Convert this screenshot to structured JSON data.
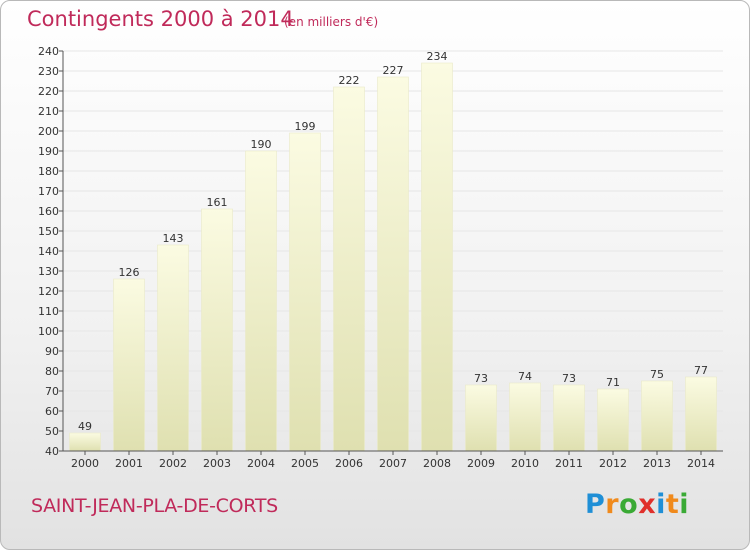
{
  "header": {
    "title": "Contingents 2000 à 2014",
    "subtitle": "(en milliers d'€)"
  },
  "footer": {
    "commune": "SAINT-JEAN-PLA-DE-CORTS",
    "logo_text": "Proxiti"
  },
  "colors": {
    "title": "#c02a5a",
    "bar_top": "#fbfbe2",
    "bar_bottom": "#dfe0b0",
    "grid": "#e6e6e6",
    "axis": "#555555",
    "logo": [
      "#1f8fd6",
      "#f08a1c",
      "#3aaa35",
      "#e0302b",
      "#1f8fd6",
      "#f08a1c",
      "#3aaa35"
    ]
  },
  "chart_data": {
    "type": "bar",
    "categories": [
      "2000",
      "2001",
      "2002",
      "2003",
      "2004",
      "2005",
      "2006",
      "2007",
      "2008",
      "2009",
      "2010",
      "2011",
      "2012",
      "2013",
      "2014"
    ],
    "values": [
      49,
      126,
      143,
      161,
      190,
      199,
      222,
      227,
      234,
      73,
      74,
      73,
      71,
      75,
      77
    ],
    "data_labels": [
      "49",
      "126",
      "143",
      "161",
      "190",
      "199",
      "222",
      "227",
      "234",
      "73",
      "74",
      "73",
      "71",
      "75",
      "77"
    ],
    "yticks": [
      40,
      50,
      60,
      70,
      80,
      90,
      100,
      110,
      120,
      130,
      140,
      150,
      160,
      170,
      180,
      190,
      200,
      210,
      220,
      230,
      240
    ],
    "ylim": [
      40,
      240
    ],
    "grid": true
  }
}
